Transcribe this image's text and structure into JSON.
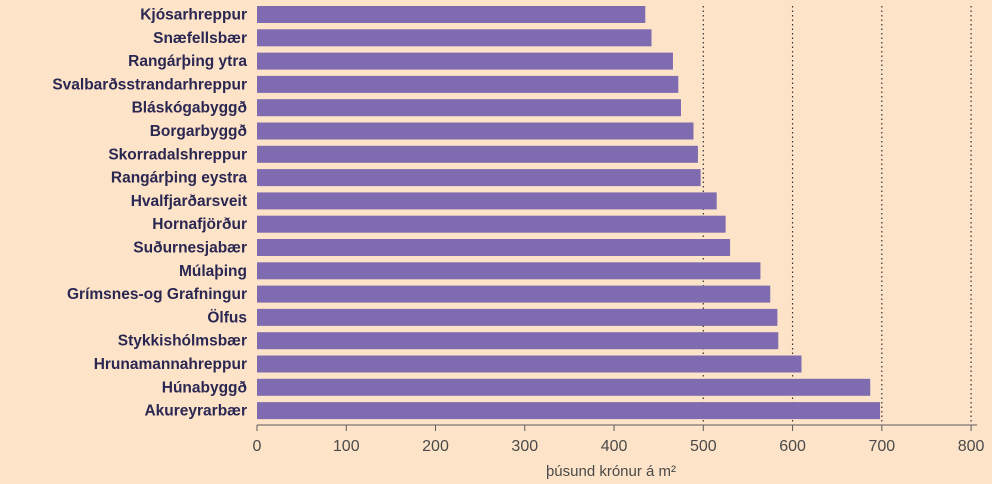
{
  "chart_data": {
    "type": "bar",
    "orientation": "horizontal",
    "categories": [
      "Kjósarhreppur",
      "Snæfellsbær",
      "Rangárþing ytra",
      "Svalbarðsstrandarhreppur",
      "Bláskógabyggð",
      "Borgarbyggð",
      "Skorradalshreppur",
      "Rangárþing eystra",
      "Hvalfjarðarsveit",
      "Hornafjörður",
      "Suðurnesjabær",
      "Múlaþing",
      "Grímsnes-og Grafningur",
      "Ölfus",
      "Stykkishólmsbær",
      "Hrunamannahreppur",
      "Húnabyggð",
      "Akureyrarbær"
    ],
    "values": [
      435,
      442,
      466,
      472,
      475,
      489,
      494,
      497,
      515,
      525,
      530,
      564,
      575,
      583,
      584,
      610,
      687,
      698
    ],
    "xlabel": "þúsund krónur á m²",
    "xlim": [
      0,
      800
    ],
    "ticks": [
      "0",
      "100",
      "200",
      "300",
      "400",
      "500",
      "600",
      "700",
      "800"
    ],
    "grid": "vertical dotted lines at 500, 600, 700, 800",
    "colors": {
      "bar": "#7f6bb0",
      "background": "#fde3c8",
      "axis": "#5a5a5a",
      "label": "#2a2752"
    }
  }
}
